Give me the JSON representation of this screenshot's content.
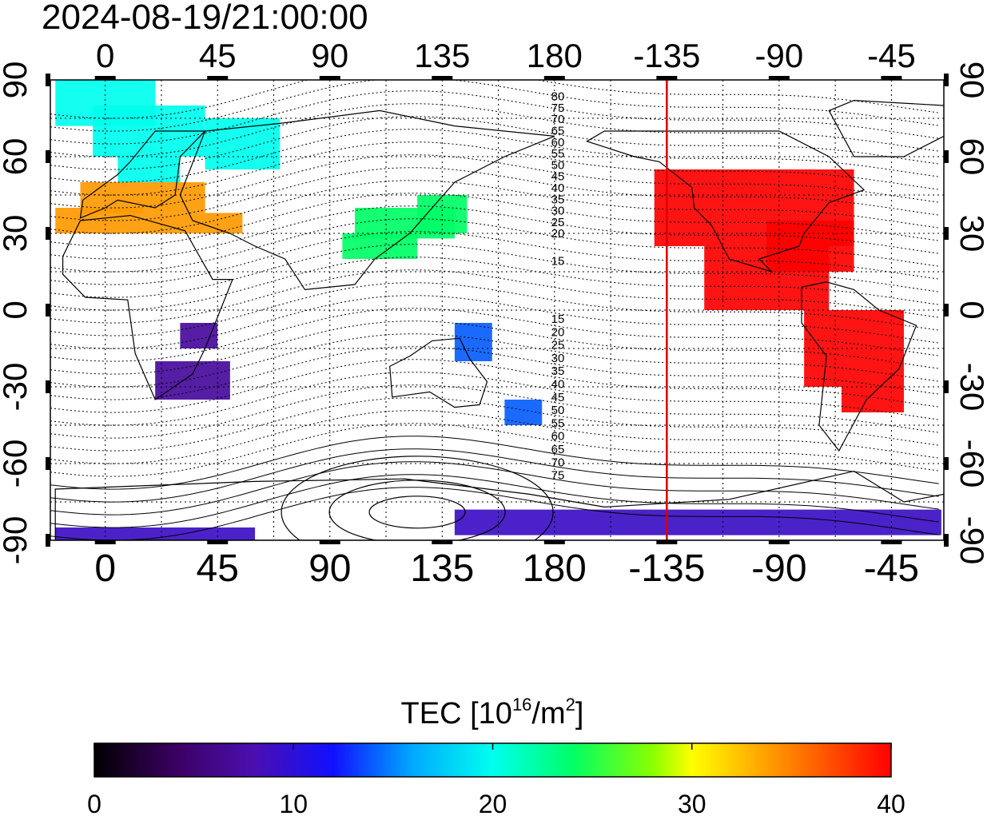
{
  "timestamp": "2024-08-19/21:00:00",
  "lon_ticks": [
    "0",
    "45",
    "90",
    "135",
    "180",
    "-135",
    "-90",
    "-45"
  ],
  "lat_ticks": [
    "90",
    "60",
    "30",
    "0",
    "-30",
    "-60",
    "-90"
  ],
  "dip_labels_north": [
    "80",
    "75",
    "70",
    "65",
    "60",
    "55",
    "50",
    "45",
    "40",
    "35",
    "30",
    "25",
    "20",
    "15"
  ],
  "dip_labels_south": [
    "15",
    "20",
    "25",
    "30",
    "35",
    "40",
    "45",
    "50",
    "55",
    "60",
    "65",
    "70",
    "75"
  ],
  "terminator_longitude": -135,
  "colorbar": {
    "title_prefix": "TEC  [10",
    "title_sup1": "16",
    "title_mid": "/m",
    "title_sup2": "2",
    "title_suffix": "]",
    "tick_labels": [
      "0",
      "10",
      "20",
      "30",
      "40"
    ],
    "min": 0,
    "max": 40
  },
  "colors": {
    "terminator": "#dd0000",
    "grid": "#000000"
  },
  "tec_regions": [
    {
      "name": "europe-north",
      "value": 20
    },
    {
      "name": "europe-south",
      "value": 34
    },
    {
      "name": "africa-south",
      "value": 7
    },
    {
      "name": "east-asia",
      "value": 24
    },
    {
      "name": "australia",
      "value": 14
    },
    {
      "name": "north-america",
      "value": 40
    },
    {
      "name": "south-america",
      "value": 40
    },
    {
      "name": "antarctica",
      "value": 9
    }
  ]
}
